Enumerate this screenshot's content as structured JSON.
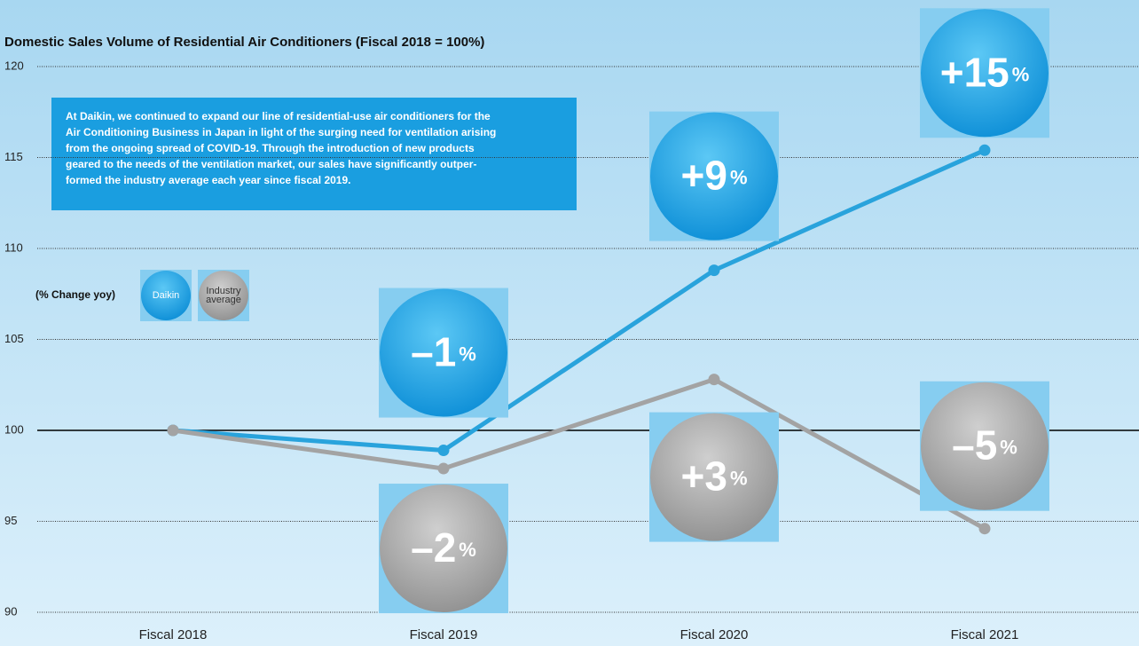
{
  "chart_data": {
    "type": "line",
    "title": "Domestic Sales Volume of Residential Air Conditioners (Fiscal 2018 = 100%)",
    "description": [
      "At Daikin, we continued to expand our line of residential-use air conditioners for the",
      "Air Conditioning Business in Japan in light of the surging need for ventilation arising",
      "from the ongoing spread of COVID-19. Through the introduction of new products",
      "geared to the needs of the ventilation market, our sales have significantly outper-",
      "formed the industry average each year since fiscal 2019."
    ],
    "legend_title": "(% Change yoy)",
    "categories": [
      "Fiscal 2018",
      "Fiscal 2019",
      "Fiscal 2020",
      "Fiscal 2021"
    ],
    "series": [
      {
        "name": "Daikin",
        "color": "#29a3dc",
        "values": [
          100,
          98.9,
          108.8,
          115.4
        ],
        "change_labels": [
          null,
          "–1%",
          "+9%",
          "+15%"
        ]
      },
      {
        "name": "Industry average",
        "color": "#a3a3a3",
        "values": [
          100,
          97.9,
          102.8,
          94.6
        ],
        "change_labels": [
          null,
          "–2%",
          "+3%",
          "–5%"
        ]
      }
    ],
    "ylim": [
      90,
      120
    ],
    "yticks": [
      90,
      95,
      100,
      105,
      110,
      115,
      120
    ],
    "grid": true,
    "reference_line": 100
  }
}
